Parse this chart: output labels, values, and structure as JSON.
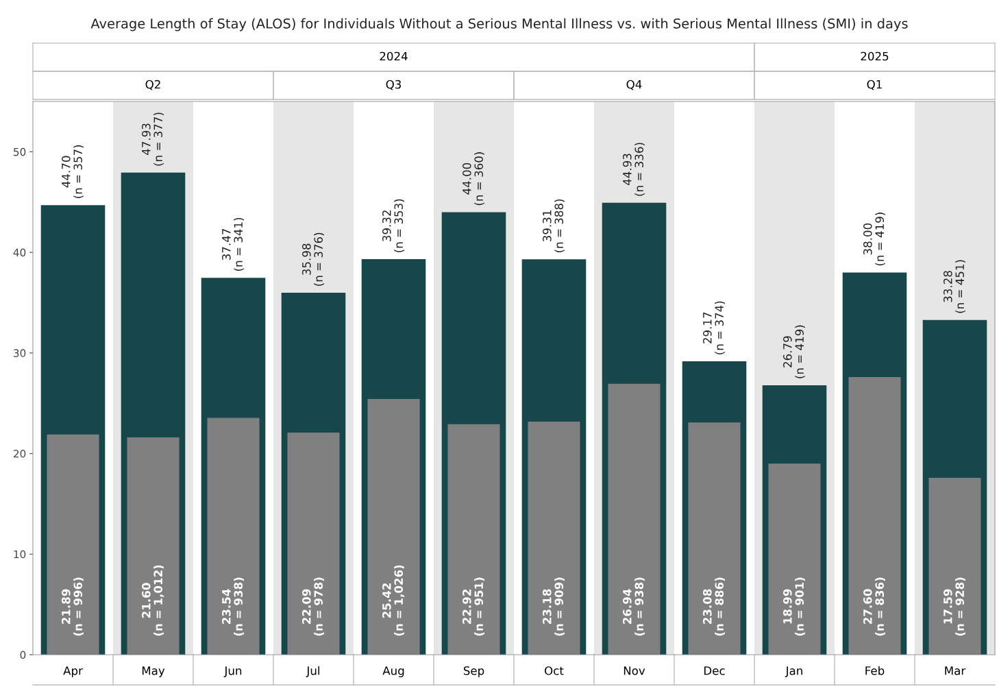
{
  "chart_data": {
    "type": "bar",
    "title": "Average Length of Stay (ALOS) for Individuals Without a Serious Mental Illness vs. with Serious Mental Illness (SMI) in days",
    "categories": [
      "Apr",
      "May",
      "Jun",
      "Jul",
      "Aug",
      "Sep",
      "Oct",
      "Nov",
      "Dec",
      "Jan",
      "Feb",
      "Mar"
    ],
    "series": [
      {
        "color": "#17474a",
        "values": [
          44.7,
          47.93,
          37.47,
          35.98,
          39.32,
          44.0,
          39.31,
          44.93,
          29.17,
          26.79,
          38.0,
          33.28
        ],
        "value_labels": [
          "44.70\n(n = 357)",
          "47.93\n(n = 377)",
          "37.47\n(n = 341)",
          "35.98\n(n = 376)",
          "39.32\n(n = 353)",
          "44.00\n(n = 360)",
          "39.31\n(n = 388)",
          "44.93\n(n = 336)",
          "29.17\n(n = 374)",
          "26.79\n(n = 419)",
          "38.00\n(n = 419)",
          "33.28\n(n = 451)"
        ]
      },
      {
        "color": "#808080",
        "values": [
          21.89,
          21.6,
          23.54,
          22.09,
          25.42,
          22.92,
          23.18,
          26.94,
          23.08,
          18.99,
          27.6,
          17.59
        ],
        "value_labels": [
          "21.89\n(n = 996)",
          "21.60\n(n = 1,012)",
          "23.54\n(n = 938)",
          "22.09\n(n = 978)",
          "25.42\n(n = 1,026)",
          "22.92\n(n = 951)",
          "23.18\n(n = 909)",
          "26.94\n(n = 938)",
          "23.08\n(n = 886)",
          "18.99\n(n = 901)",
          "27.60\n(n = 836)",
          "17.59\n(n = 928)"
        ]
      }
    ],
    "annotations": [
      "2024",
      "2025",
      "Q2",
      "Q3",
      "Q4",
      "Q1"
    ],
    "ylim": [
      0,
      55
    ],
    "yticks": [
      0,
      10,
      20,
      30,
      40,
      50
    ],
    "grid": false
  }
}
